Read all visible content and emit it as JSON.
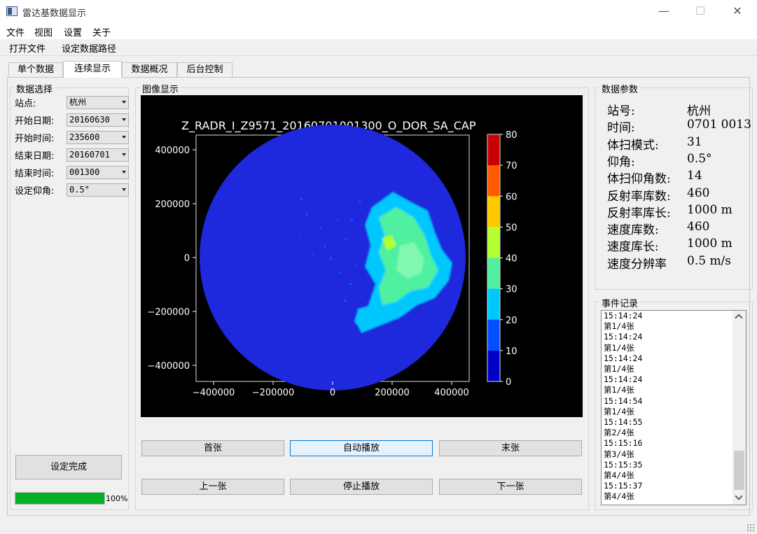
{
  "window": {
    "title": "雷达基数据显示",
    "minimize": "—",
    "maximize": "☐",
    "close": "✕"
  },
  "menu": [
    "文件",
    "视图",
    "设置",
    "关于"
  ],
  "toolbar": [
    "打开文件",
    "设定数据路径"
  ],
  "tabs": [
    "单个数据",
    "连续显示",
    "数据概况",
    "后台控制"
  ],
  "active_tab": 1,
  "selection": {
    "title": "数据选择",
    "fields": [
      {
        "label": "站点:",
        "value": "杭州"
      },
      {
        "label": "开始日期:",
        "value": "20160630"
      },
      {
        "label": "开始时间:",
        "value": "235600"
      },
      {
        "label": "结束日期:",
        "value": "20160701"
      },
      {
        "label": "结束时间:",
        "value": "001300"
      },
      {
        "label": "设定仰角:",
        "value": "0.5°"
      }
    ],
    "confirm_button": "设定完成",
    "progress": {
      "value": 100,
      "label": "100%"
    }
  },
  "image": {
    "title": "图像显示",
    "plot_title": "Z_RADR_I_Z9571_20160701001300_O_DOR_SA_CAP",
    "x_ticks": [
      "−400000",
      "−200000",
      "0",
      "200000",
      "400000"
    ],
    "y_ticks": [
      "400000",
      "200000",
      "0",
      "−200000",
      "−400000"
    ],
    "colorbar_ticks": [
      "80",
      "70",
      "60",
      "50",
      "40",
      "30",
      "20",
      "10",
      "0"
    ],
    "colorbar_colors": [
      "#c80000",
      "#ff5a00",
      "#ffc800",
      "#b4ff32",
      "#50f0a0",
      "#00c8ff",
      "#0050ff",
      "#0000c8"
    ],
    "background_color": "#1e28dc"
  },
  "controls": {
    "first": "首张",
    "auto_play": "自动播放",
    "last": "末张",
    "prev": "上一张",
    "stop": "停止播放",
    "next": "下一张"
  },
  "params": {
    "title": "数据参数",
    "rows": [
      {
        "label": "站号:",
        "value": "杭州"
      },
      {
        "label": "时间:",
        "value": "0701 0013"
      },
      {
        "label": "体扫模式:",
        "value": "31"
      },
      {
        "label": "仰角:",
        "value": "0.5°"
      },
      {
        "label": "体扫仰角数:",
        "value": "14"
      },
      {
        "label": "反射率库数:",
        "value": "460"
      },
      {
        "label": "反射率库长:",
        "value": "1000 m"
      },
      {
        "label": "速度库数:",
        "value": "460"
      },
      {
        "label": "速度库长:",
        "value": "1000 m"
      },
      {
        "label": "速度分辨率",
        "value": "0.5 m/s"
      }
    ]
  },
  "events": {
    "title": "事件记录",
    "lines": [
      "15:14:24",
      "第1/4张",
      "15:14:24",
      "第1/4张",
      "15:14:24",
      "第1/4张",
      "15:14:24",
      "第1/4张",
      "15:14:54",
      "第1/4张",
      "15:14:55",
      "第2/4张",
      "15:15:16",
      "第3/4张",
      "15:15:35",
      "第4/4张",
      "15:15:37",
      "第4/4张"
    ]
  }
}
